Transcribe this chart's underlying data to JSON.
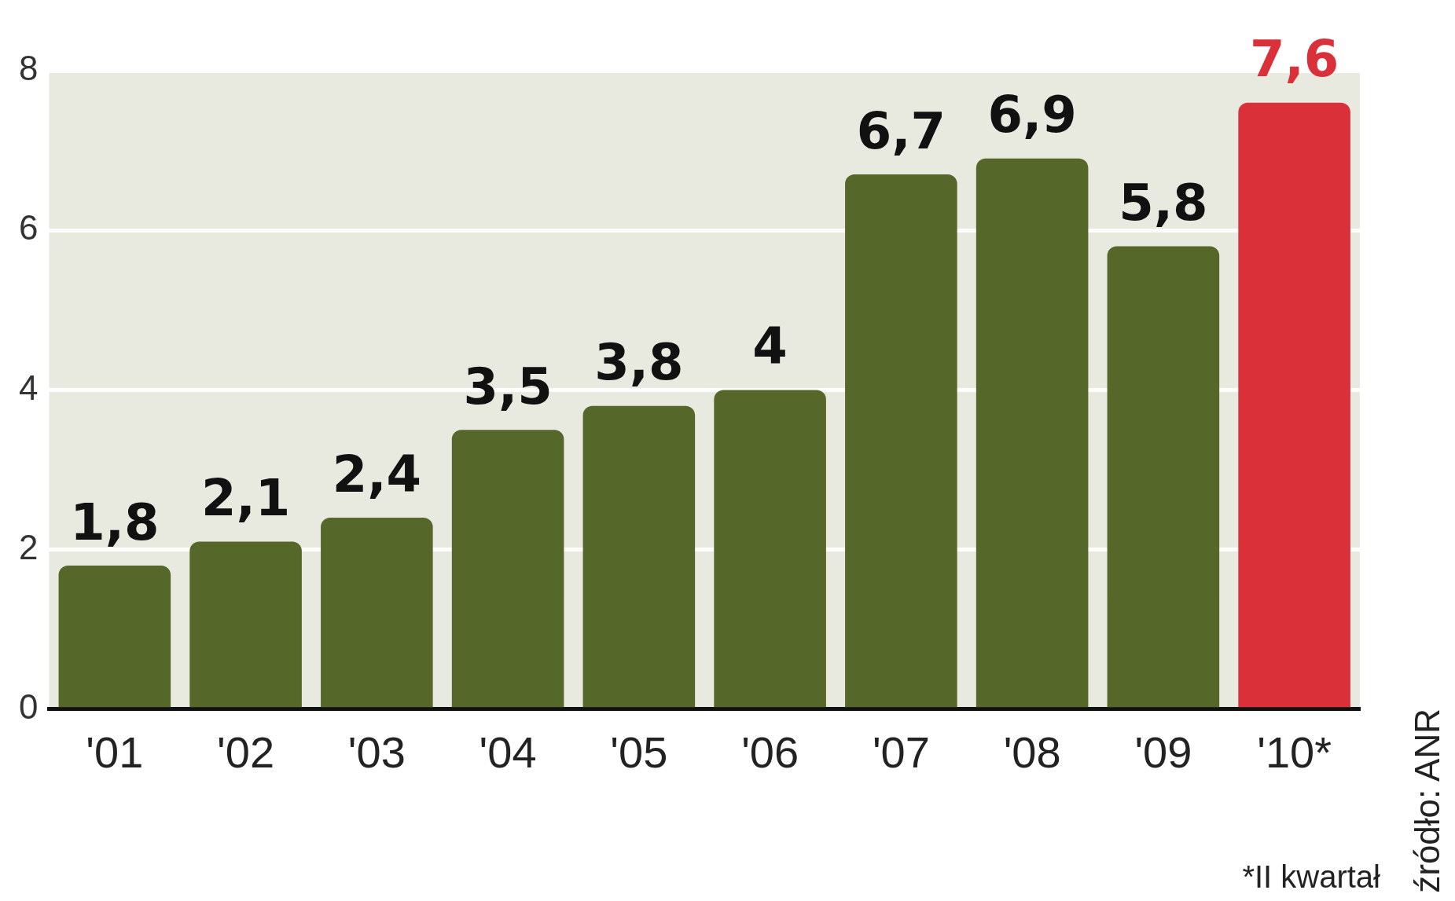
{
  "chart_data": {
    "type": "bar",
    "categories": [
      "'01",
      "'02",
      "'03",
      "'04",
      "'05",
      "'06",
      "'07",
      "'08",
      "'09",
      "'10*"
    ],
    "values": [
      1.8,
      2.1,
      2.4,
      3.5,
      3.8,
      4,
      6.7,
      6.9,
      5.8,
      7.6
    ],
    "colors": [
      "#56672a",
      "#56672a",
      "#56672a",
      "#56672a",
      "#56672a",
      "#56672a",
      "#56672a",
      "#56672a",
      "#56672a",
      "#d9303a"
    ],
    "value_labels": [
      "1,8",
      "2,1",
      "2,4",
      "3,5",
      "3,8",
      "4",
      "6,7",
      "6,9",
      "5,8",
      "7,6"
    ],
    "ylim": [
      0,
      8
    ],
    "yticks": [
      0,
      2,
      4,
      6,
      8
    ],
    "grid": "y",
    "annotations": [
      "*II kwartał",
      "źródło: ANR"
    ]
  }
}
